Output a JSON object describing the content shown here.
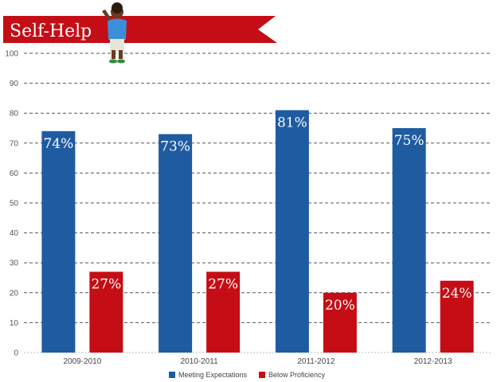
{
  "chart_data": {
    "type": "bar",
    "title": "Self-Help",
    "categories": [
      "2009-2010",
      "2010-2011",
      "2011-2012",
      "2012-2013"
    ],
    "series": [
      {
        "name": "Meeting Expectations",
        "color": "#1f5ba0",
        "values": [
          74,
          73,
          81,
          75
        ],
        "labels": [
          "74%",
          "73%",
          "81%",
          "75%"
        ]
      },
      {
        "name": "Below Proficiency",
        "color": "#c50d15",
        "values": [
          27,
          27,
          20,
          24
        ],
        "labels": [
          "27%",
          "27%",
          "20%",
          "24%"
        ]
      }
    ],
    "ylim": [
      0,
      100
    ],
    "yticks": [
      0,
      10,
      20,
      30,
      40,
      50,
      60,
      70,
      80,
      90,
      100
    ],
    "grid": true,
    "legend_position": "bottom-center",
    "banner_color": "#c50d15",
    "icon": "child-figure-icon"
  }
}
